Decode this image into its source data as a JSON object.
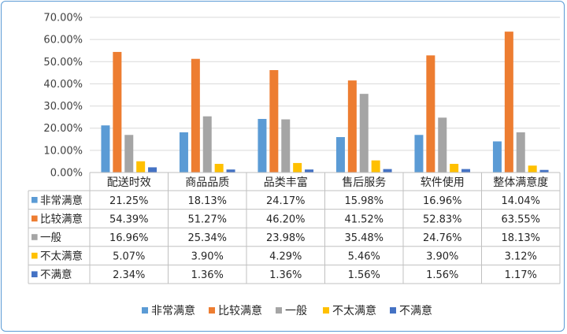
{
  "chart_data": {
    "type": "bar",
    "title": "",
    "xlabel": "",
    "ylabel": "",
    "ylim": [
      0,
      70
    ],
    "y_ticks": [
      "0.00%",
      "10.00%",
      "20.00%",
      "30.00%",
      "40.00%",
      "50.00%",
      "60.00%",
      "70.00%"
    ],
    "grid": true,
    "legend_position": "bottom",
    "data_table": true,
    "categories": [
      "配送时效",
      "商品品质",
      "品类丰富",
      "售后服务",
      "软件使用",
      "整体满意度"
    ],
    "series": [
      {
        "name": "非常满意",
        "color": "#5b9bd5",
        "values": [
          21.25,
          18.13,
          24.17,
          15.98,
          16.96,
          14.04
        ],
        "labels": [
          "21.25%",
          "18.13%",
          "24.17%",
          "15.98%",
          "16.96%",
          "14.04%"
        ]
      },
      {
        "name": "比较满意",
        "color": "#ed7d31",
        "values": [
          54.39,
          51.27,
          46.2,
          41.52,
          52.83,
          63.55
        ],
        "labels": [
          "54.39%",
          "51.27%",
          "46.20%",
          "41.52%",
          "52.83%",
          "63.55%"
        ]
      },
      {
        "name": "一般",
        "color": "#a5a5a5",
        "values": [
          16.96,
          25.34,
          23.98,
          35.48,
          24.76,
          18.13
        ],
        "labels": [
          "16.96%",
          "25.34%",
          "23.98%",
          "35.48%",
          "24.76%",
          "18.13%"
        ]
      },
      {
        "name": "不太满意",
        "color": "#ffc000",
        "values": [
          5.07,
          3.9,
          4.29,
          5.46,
          3.9,
          3.12
        ],
        "labels": [
          "5.07%",
          "3.90%",
          "4.29%",
          "5.46%",
          "3.90%",
          "3.12%"
        ]
      },
      {
        "name": "不满意",
        "color": "#4472c4",
        "values": [
          2.34,
          1.36,
          1.36,
          1.56,
          1.56,
          1.17
        ],
        "labels": [
          "2.34%",
          "1.36%",
          "1.36%",
          "1.56%",
          "1.56%",
          "1.17%"
        ]
      }
    ]
  }
}
